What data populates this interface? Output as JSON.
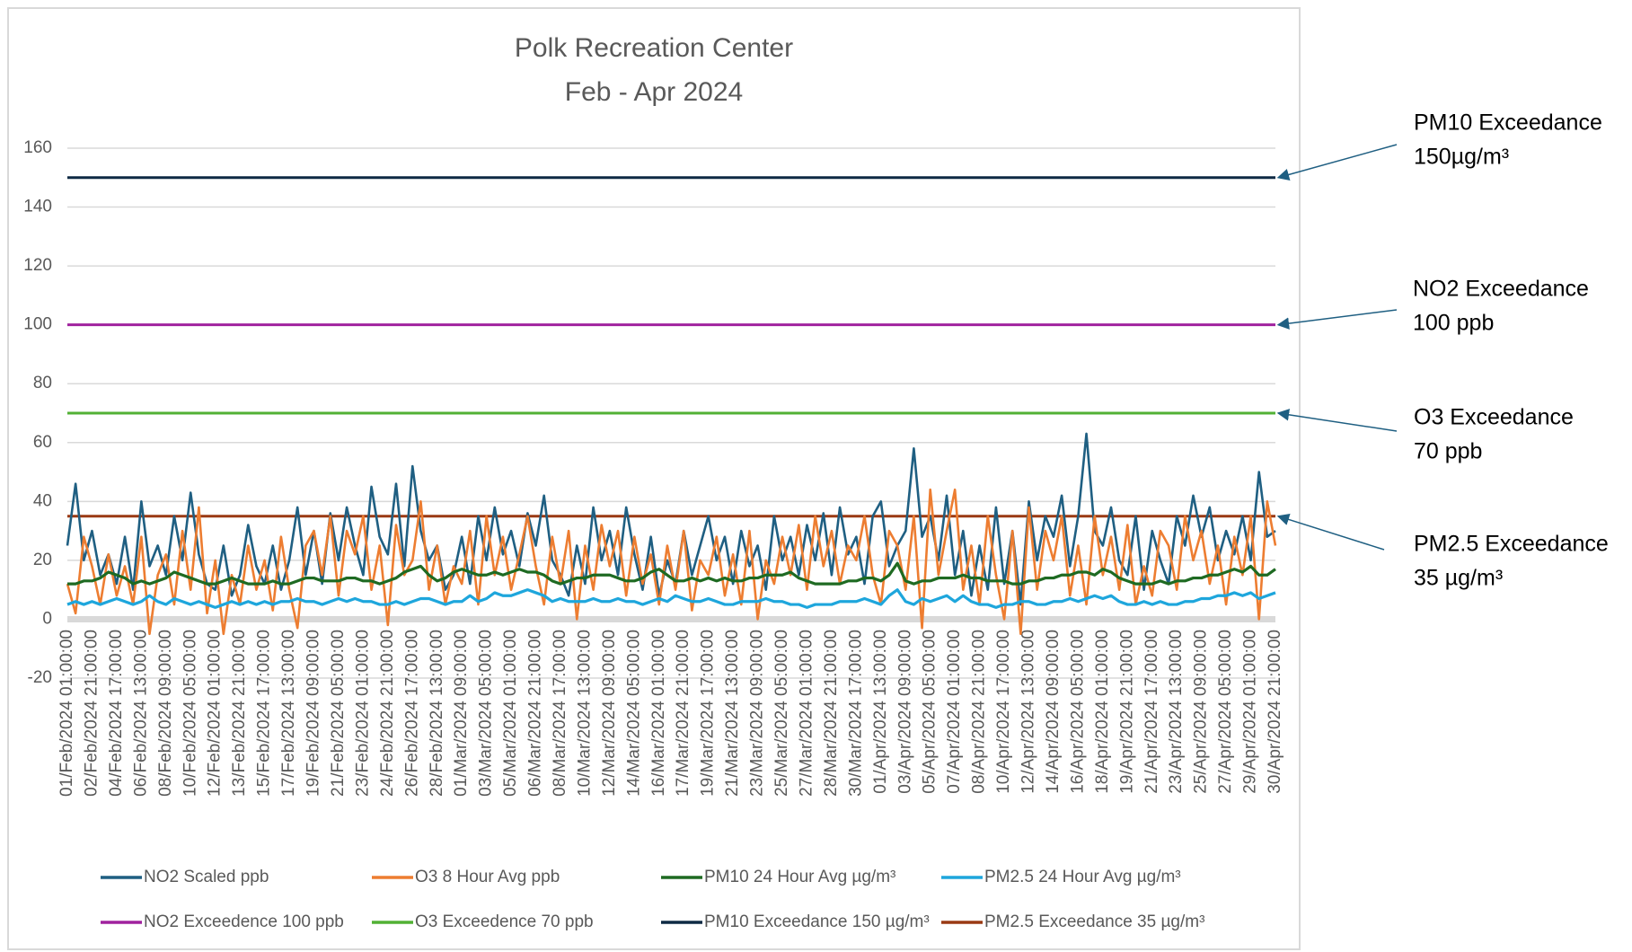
{
  "chart_data": {
    "type": "line",
    "title": [
      "Polk Recreation Center",
      "Feb - Apr 2024"
    ],
    "categories": [
      "01/Feb/2024 01:00:00",
      null,
      null,
      "02/Feb/2024 21:00:00",
      null,
      null,
      "04/Feb/2024 17:00:00",
      null,
      null,
      "06/Feb/2024 13:00:00",
      null,
      null,
      "08/Feb/2024 09:00:00",
      null,
      null,
      "10/Feb/2024 05:00:00",
      null,
      null,
      "12/Feb/2024 01:00:00",
      null,
      null,
      "13/Feb/2024 21:00:00",
      null,
      null,
      "15/Feb/2024 17:00:00",
      null,
      null,
      "17/Feb/2024 13:00:00",
      null,
      null,
      "19/Feb/2024 09:00:00",
      null,
      null,
      "21/Feb/2024 05:00:00",
      null,
      null,
      "23/Feb/2024 01:00:00",
      null,
      null,
      "24/Feb/2024 21:00:00",
      null,
      null,
      "26/Feb/2024 17:00:00",
      null,
      null,
      "28/Feb/2024 13:00:00",
      null,
      null,
      "01/Mar/2024 09:00:00",
      null,
      null,
      "03/Mar/2024 05:00:00",
      null,
      null,
      "05/Mar/2024 01:00:00",
      null,
      null,
      "06/Mar/2024 21:00:00",
      null,
      null,
      "08/Mar/2024 17:00:00",
      null,
      null,
      "10/Mar/2024 13:00:00",
      null,
      null,
      "12/Mar/2024 09:00:00",
      null,
      null,
      "14/Mar/2024 05:00:00",
      null,
      null,
      "16/Mar/2024 01:00:00",
      null,
      null,
      "17/Mar/2024 21:00:00",
      null,
      null,
      "19/Mar/2024 17:00:00",
      null,
      null,
      "21/Mar/2024 13:00:00",
      null,
      null,
      "23/Mar/2024 09:00:00",
      null,
      null,
      "25/Mar/2024 05:00:00",
      null,
      null,
      "27/Mar/2024 01:00:00",
      null,
      null,
      "28/Mar/2024 21:00:00",
      null,
      null,
      "30/Mar/2024 17:00:00",
      null,
      null,
      "01/Apr/2024 13:00:00",
      null,
      null,
      "03/Apr/2024 09:00:00",
      null,
      null,
      "05/Apr/2024 05:00:00",
      null,
      null,
      "07/Apr/2024 01:00:00",
      null,
      null,
      "08/Apr/2024 21:00:00",
      null,
      null,
      "10/Apr/2024 17:00:00",
      null,
      null,
      "12/Apr/2024 13:00:00",
      null,
      null,
      "14/Apr/2024 09:00:00",
      null,
      null,
      "16/Apr/2024 05:00:00",
      null,
      null,
      "18/Apr/2024 01:00:00",
      null,
      null,
      "19/Apr/2024 21:00:00",
      null,
      null,
      "21/Apr/2024 17:00:00",
      null,
      null,
      "23/Apr/2024 13:00:00",
      null,
      null,
      "25/Apr/2024 09:00:00",
      null,
      null,
      "27/Apr/2024 05:00:00",
      null,
      null,
      "29/Apr/2024 01:00:00",
      null,
      null,
      "30/Apr/2024 21:00:00"
    ],
    "series": [
      {
        "name": "NO2 Scaled ppb",
        "color": "#1f5f82",
        "values": [
          25,
          46,
          20,
          30,
          15,
          22,
          12,
          28,
          10,
          40,
          18,
          25,
          15,
          35,
          20,
          43,
          22,
          12,
          10,
          25,
          8,
          15,
          32,
          18,
          12,
          25,
          10,
          20,
          38,
          15,
          30,
          12,
          36,
          20,
          38,
          25,
          15,
          45,
          28,
          22,
          46,
          18,
          52,
          30,
          20,
          25,
          10,
          15,
          28,
          12,
          35,
          20,
          38,
          22,
          30,
          18,
          36,
          25,
          42,
          20,
          15,
          8,
          25,
          12,
          38,
          20,
          30,
          15,
          38,
          22,
          10,
          28,
          8,
          20,
          12,
          30,
          15,
          25,
          35,
          20,
          28,
          12,
          30,
          18,
          25,
          10,
          35,
          20,
          28,
          15,
          32,
          20,
          36,
          15,
          38,
          22,
          28,
          12,
          35,
          40,
          18,
          25,
          30,
          58,
          28,
          35,
          20,
          42,
          15,
          30,
          8,
          25,
          10,
          38,
          12,
          30,
          5,
          40,
          20,
          35,
          28,
          42,
          18,
          35,
          63,
          30,
          25,
          38,
          20,
          15,
          35,
          10,
          30,
          20,
          12,
          35,
          25,
          42,
          28,
          38,
          20,
          30,
          22,
          35,
          20,
          50,
          28,
          30
        ]
      },
      {
        "name": "O3 8 Hour Avg ppb",
        "color": "#ed7d31",
        "values": [
          12,
          2,
          28,
          18,
          5,
          22,
          8,
          18,
          5,
          28,
          -5,
          15,
          22,
          5,
          30,
          10,
          38,
          2,
          20,
          -5,
          15,
          5,
          25,
          10,
          20,
          3,
          28,
          10,
          -3,
          25,
          30,
          15,
          35,
          8,
          30,
          22,
          35,
          10,
          25,
          -2,
          32,
          15,
          20,
          40,
          10,
          25,
          5,
          18,
          12,
          30,
          5,
          35,
          15,
          28,
          10,
          22,
          35,
          18,
          5,
          28,
          12,
          30,
          0,
          25,
          10,
          32,
          18,
          30,
          8,
          28,
          12,
          22,
          5,
          25,
          10,
          30,
          3,
          20,
          15,
          28,
          8,
          22,
          5,
          30,
          0,
          20,
          12,
          28,
          15,
          32,
          10,
          35,
          18,
          30,
          12,
          25,
          20,
          35,
          15,
          5,
          30,
          25,
          10,
          35,
          -3,
          44,
          15,
          30,
          44,
          10,
          25,
          5,
          35,
          15,
          0,
          30,
          -5,
          38,
          10,
          30,
          20,
          35,
          8,
          25,
          5,
          35,
          15,
          28,
          10,
          32,
          5,
          18,
          8,
          30,
          25,
          10,
          35,
          20,
          30,
          12,
          25,
          5,
          28,
          15,
          35,
          0,
          40,
          25
        ]
      },
      {
        "name": "PM10 24 Hour Avg µg/m³",
        "color": "#1e6a22",
        "values": [
          12,
          12,
          13,
          13,
          14,
          16,
          15,
          14,
          12,
          13,
          12,
          13,
          14,
          16,
          15,
          14,
          13,
          12,
          12,
          13,
          14,
          13,
          12,
          12,
          12,
          13,
          12,
          12,
          13,
          14,
          14,
          13,
          13,
          13,
          14,
          14,
          13,
          13,
          12,
          13,
          14,
          16,
          17,
          18,
          15,
          13,
          14,
          16,
          17,
          16,
          15,
          15,
          16,
          15,
          16,
          17,
          16,
          16,
          15,
          13,
          12,
          13,
          14,
          14,
          15,
          15,
          15,
          14,
          13,
          13,
          14,
          16,
          17,
          15,
          13,
          13,
          14,
          13,
          14,
          13,
          14,
          13,
          13,
          14,
          14,
          15,
          15,
          15,
          16,
          14,
          13,
          12,
          12,
          12,
          12,
          13,
          13,
          14,
          14,
          13,
          15,
          19,
          13,
          12,
          13,
          13,
          14,
          14,
          14,
          15,
          14,
          14,
          13,
          13,
          13,
          12,
          12,
          13,
          13,
          14,
          14,
          15,
          15,
          16,
          16,
          15,
          17,
          16,
          14,
          13,
          12,
          12,
          12,
          13,
          12,
          13,
          13,
          14,
          14,
          15,
          15,
          16,
          17,
          16,
          18,
          15,
          15,
          17
        ]
      },
      {
        "name": "PM2.5 24 Hour Avg µg/m³",
        "color": "#1ea6dc",
        "values": [
          5,
          6,
          5,
          6,
          5,
          6,
          7,
          6,
          5,
          6,
          8,
          6,
          5,
          7,
          6,
          5,
          6,
          5,
          4,
          5,
          6,
          5,
          6,
          5,
          6,
          5,
          6,
          6,
          7,
          6,
          6,
          5,
          6,
          7,
          6,
          7,
          6,
          6,
          5,
          5,
          6,
          5,
          6,
          7,
          7,
          6,
          5,
          6,
          6,
          8,
          6,
          7,
          9,
          8,
          8,
          9,
          10,
          9,
          8,
          6,
          7,
          6,
          6,
          6,
          7,
          6,
          6,
          7,
          6,
          6,
          5,
          6,
          7,
          6,
          8,
          7,
          6,
          6,
          7,
          6,
          5,
          5,
          6,
          6,
          6,
          7,
          6,
          6,
          5,
          5,
          4,
          5,
          5,
          5,
          6,
          6,
          6,
          7,
          6,
          5,
          8,
          10,
          6,
          5,
          7,
          6,
          7,
          8,
          6,
          8,
          6,
          5,
          5,
          4,
          5,
          5,
          6,
          6,
          5,
          5,
          6,
          6,
          7,
          6,
          7,
          8,
          7,
          8,
          6,
          5,
          5,
          6,
          5,
          6,
          5,
          5,
          6,
          6,
          7,
          7,
          8,
          8,
          9,
          8,
          9,
          7,
          8,
          9
        ]
      }
    ],
    "thresholds": [
      {
        "name": "NO2 Exceedence 100 ppb",
        "color": "#a0229e",
        "value": 100,
        "annotation": [
          "NO2 Exceedance",
          "100 ppb"
        ]
      },
      {
        "name": "O3 Exceedence 70 ppb",
        "color": "#52b135",
        "value": 70,
        "annotation": [
          "O3 Exceedance",
          "70 ppb"
        ]
      },
      {
        "name": "PM10 Exceedance 150 µg/m³",
        "color": "#0e2a44",
        "value": 150,
        "annotation": [
          "PM10 Exceedance",
          "150µg/m³"
        ]
      },
      {
        "name": "PM2.5 Exceedance 35 µg/m³",
        "color": "#9a3a14",
        "value": 35,
        "annotation": [
          "PM2.5 Exceedance",
          "35 µg/m³"
        ]
      }
    ],
    "ylim": [
      -20,
      160
    ],
    "yticks": [
      -20,
      0,
      20,
      40,
      60,
      80,
      100,
      120,
      140,
      160
    ],
    "grid": true
  }
}
